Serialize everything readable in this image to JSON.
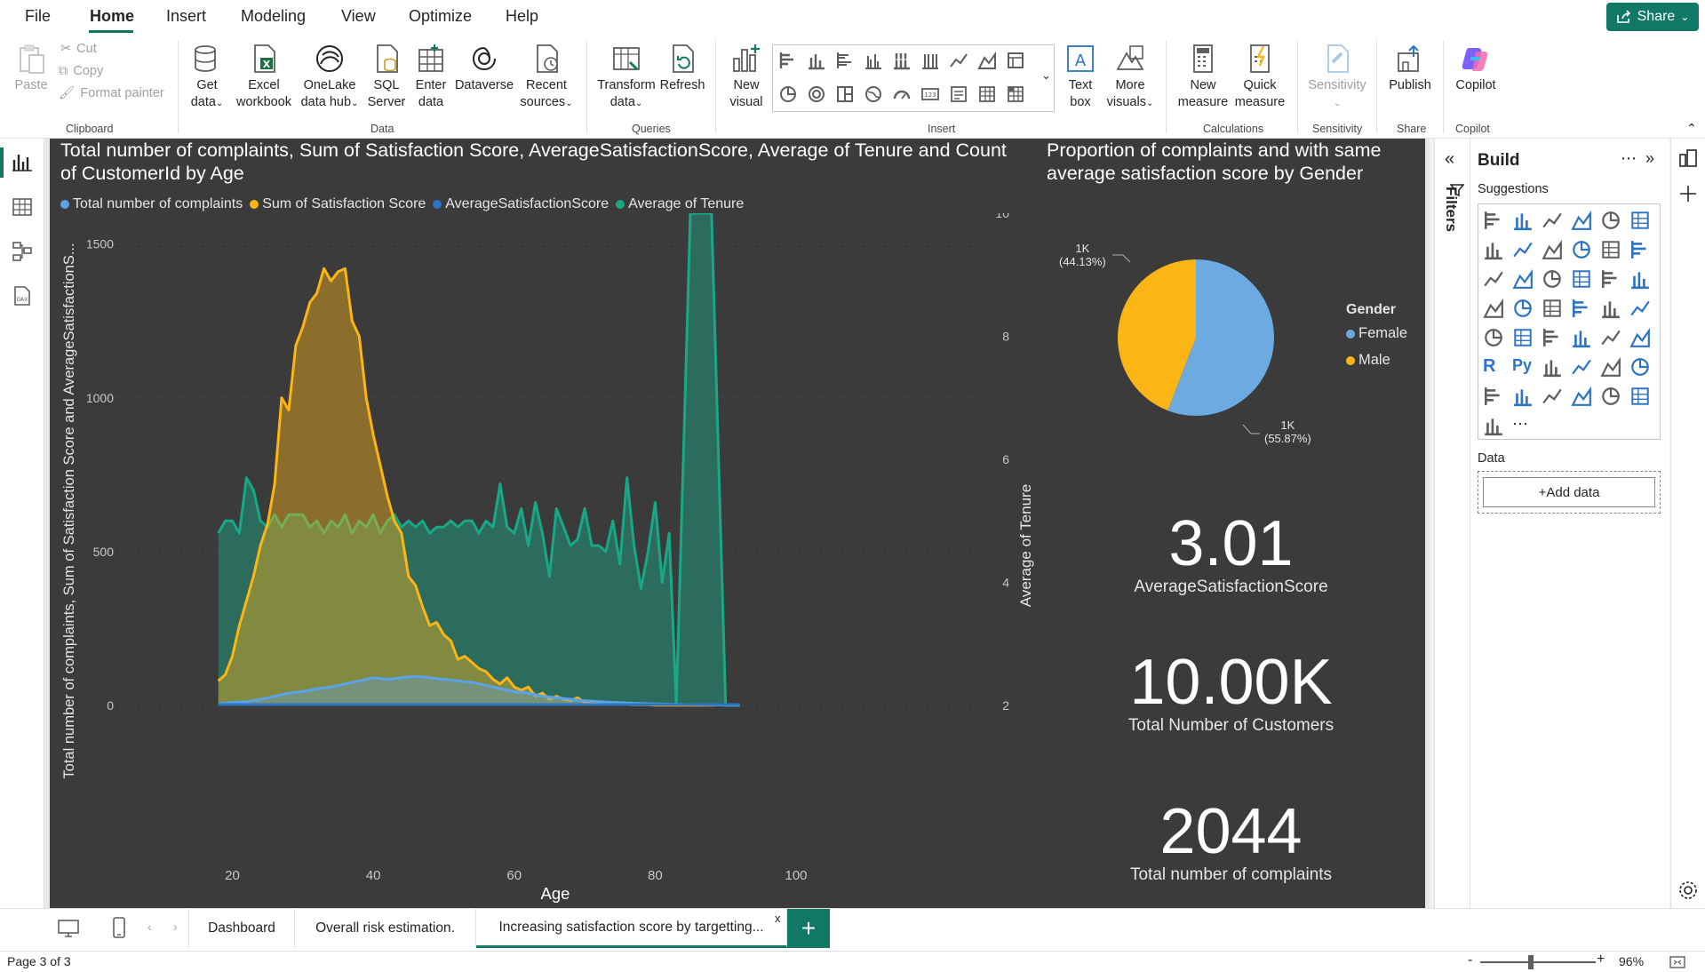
{
  "menu": {
    "items": [
      "File",
      "Home",
      "Insert",
      "Modeling",
      "View",
      "Optimize",
      "Help"
    ],
    "active": "Home",
    "share_label": "Share"
  },
  "ribbon": {
    "clipboard": {
      "paste": "Paste",
      "cut": "Cut",
      "copy": "Copy",
      "format_painter": "Format painter",
      "group": "Clipboard"
    },
    "data": {
      "get_data": [
        "Get",
        "data"
      ],
      "excel": [
        "Excel",
        "workbook"
      ],
      "onelake": [
        "OneLake",
        "data hub"
      ],
      "sql": [
        "SQL",
        "Server"
      ],
      "enter": [
        "Enter",
        "data"
      ],
      "dataverse": "Dataverse",
      "recent": [
        "Recent",
        "sources"
      ],
      "group": "Data"
    },
    "queries": {
      "transform": [
        "Transform",
        "data"
      ],
      "refresh": "Refresh",
      "group": "Queries"
    },
    "insert": {
      "new_visual": [
        "New",
        "visual"
      ],
      "text_box": [
        "Text",
        "box"
      ],
      "more_visuals": [
        "More",
        "visuals"
      ],
      "group": "Insert"
    },
    "calculations": {
      "new_measure": [
        "New",
        "measure"
      ],
      "quick_measure": [
        "Quick",
        "measure"
      ],
      "group": "Calculations"
    },
    "sensitivity": {
      "label": "Sensitivity",
      "group": "Sensitivity"
    },
    "share": {
      "publish": "Publish",
      "group": "Share"
    },
    "copilot": {
      "label": "Copilot",
      "group": "Copilot"
    }
  },
  "main_chart": {
    "title": "Total number of complaints, Sum of Satisfaction Score, AverageSatisfactionScore, Average of Tenure and Count of CustomerId by Age",
    "legend": [
      {
        "name": "Total number of complaints",
        "color": "#5ba3e8"
      },
      {
        "name": "Sum of Satisfaction Score",
        "color": "#fbb515"
      },
      {
        "name": "AverageSatisfactionScore",
        "color": "#2c73c2"
      },
      {
        "name": "Average of Tenure",
        "color": "#19a887"
      }
    ],
    "y_axis_label": "Total number of complaints, Sum of Satisfaction Score and AverageSatisfactionS...",
    "y2_axis_label": "Average of Tenure",
    "x_axis_label": "Age"
  },
  "chart_data": {
    "type": "area",
    "title": "Total number of complaints, Sum of Satisfaction Score, AverageSatisfactionScore, Average of Tenure and Count of CustomerId by Age",
    "xlabel": "Age",
    "ylabel": "Total number of complaints, Sum of Satisfaction Score and AverageSatisfactionS...",
    "y2label": "Average of Tenure",
    "xlim": [
      13,
      100
    ],
    "ylim": [
      0,
      1600
    ],
    "y2lim": [
      2,
      10
    ],
    "x_ticks": [
      20,
      40,
      60,
      80,
      100
    ],
    "y_ticks": [
      0,
      500,
      1000,
      1500
    ],
    "y2_ticks": [
      2,
      4,
      6,
      8,
      10
    ],
    "series": [
      {
        "name": "Average of Tenure",
        "axis": "y2",
        "color": "#19a887",
        "x": [
          18,
          19,
          20,
          21,
          22,
          23,
          24,
          25,
          26,
          27,
          28,
          29,
          30,
          31,
          32,
          33,
          34,
          35,
          36,
          37,
          38,
          39,
          40,
          41,
          42,
          43,
          44,
          45,
          46,
          47,
          48,
          49,
          50,
          51,
          52,
          53,
          54,
          55,
          56,
          57,
          58,
          59,
          60,
          61,
          62,
          63,
          64,
          65,
          66,
          67,
          68,
          69,
          70,
          71,
          72,
          73,
          74,
          75,
          76,
          77,
          78,
          79,
          80,
          81,
          82,
          83,
          85,
          88,
          90,
          92
        ],
        "values": [
          4.8,
          5.0,
          5.0,
          4.8,
          5.7,
          5.5,
          5.0,
          4.9,
          5.1,
          4.9,
          5.1,
          5.1,
          5.1,
          4.9,
          5.0,
          4.8,
          5.0,
          4.9,
          5.1,
          4.8,
          5.0,
          4.9,
          5.1,
          4.8,
          5.0,
          5.1,
          4.9,
          5.0,
          4.9,
          5.0,
          4.8,
          4.9,
          4.9,
          5.0,
          4.9,
          5.0,
          5.0,
          4.8,
          5.0,
          4.9,
          5.6,
          4.9,
          4.8,
          5.2,
          4.6,
          5.3,
          4.8,
          4.1,
          5.2,
          4.9,
          4.6,
          4.7,
          5.2,
          4.6,
          4.6,
          4.5,
          5.0,
          4.3,
          5.7,
          4.6,
          3.9,
          4.5,
          5.3,
          4.0,
          4.8,
          2.0,
          10.0,
          10.0,
          2.0,
          2.0
        ]
      },
      {
        "name": "Sum of Satisfaction Score",
        "axis": "y",
        "color": "#fbb515",
        "x": [
          18,
          19,
          20,
          21,
          22,
          23,
          24,
          25,
          26,
          27,
          28,
          29,
          30,
          31,
          32,
          33,
          34,
          35,
          36,
          37,
          38,
          39,
          40,
          41,
          42,
          43,
          44,
          45,
          46,
          47,
          48,
          49,
          50,
          51,
          52,
          53,
          54,
          55,
          56,
          57,
          58,
          59,
          60,
          61,
          62,
          63,
          64,
          65,
          66,
          67,
          68,
          69,
          70,
          71,
          72,
          73,
          74,
          75,
          76,
          77,
          78,
          79,
          80,
          81,
          82,
          83,
          85,
          88,
          90,
          92
        ],
        "values": [
          80,
          100,
          160,
          260,
          340,
          420,
          520,
          590,
          720,
          1000,
          960,
          1170,
          1230,
          1310,
          1340,
          1420,
          1380,
          1410,
          1420,
          1250,
          1200,
          1000,
          880,
          780,
          680,
          600,
          560,
          420,
          390,
          320,
          260,
          270,
          230,
          210,
          150,
          160,
          140,
          120,
          110,
          85,
          70,
          90,
          60,
          50,
          60,
          30,
          40,
          20,
          30,
          20,
          15,
          25,
          10,
          12,
          8,
          10,
          5,
          5,
          3,
          2,
          2,
          2,
          1,
          1,
          1,
          1,
          1,
          1,
          2,
          2
        ]
      },
      {
        "name": "Total number of complaints",
        "axis": "y",
        "color": "#5ba3e8",
        "x": [
          18,
          20,
          22,
          24,
          26,
          28,
          30,
          32,
          34,
          36,
          38,
          40,
          42,
          44,
          46,
          48,
          50,
          52,
          54,
          56,
          58,
          60,
          62,
          64,
          66,
          68,
          70,
          72,
          74,
          76,
          78,
          80,
          82,
          85,
          88,
          90,
          92
        ],
        "values": [
          5,
          10,
          12,
          20,
          30,
          40,
          45,
          55,
          60,
          70,
          80,
          90,
          85,
          90,
          95,
          90,
          85,
          80,
          75,
          65,
          55,
          45,
          40,
          30,
          25,
          20,
          15,
          12,
          10,
          8,
          6,
          5,
          4,
          3,
          2,
          1,
          1
        ]
      },
      {
        "name": "AverageSatisfactionScore",
        "axis": "y",
        "color": "#2c73c2",
        "x": [
          18,
          92
        ],
        "values": [
          3,
          3
        ]
      }
    ],
    "legend_position": "top-left"
  },
  "pie": {
    "title": "Proportion of complaints and with same average satisfaction score by Gender",
    "legend_title": "Gender",
    "slices": [
      {
        "name": "Female",
        "value": 55.87,
        "label": "1K",
        "pct": "(55.87%)",
        "color": "#6caae0"
      },
      {
        "name": "Male",
        "value": 44.13,
        "label": "1K",
        "pct": "(44.13%)",
        "color": "#fbb515"
      }
    ]
  },
  "cards": [
    {
      "value": "3.01",
      "label": "AverageSatisfactionScore"
    },
    {
      "value": "10.00K",
      "label": "Total Number of Customers"
    },
    {
      "value": "2044",
      "label": "Total number of complaints"
    }
  ],
  "filters_label": "Filters",
  "build_pane": {
    "title": "Build",
    "suggestions_label": "Suggestions",
    "data_label": "Data",
    "add_data": "+Add data"
  },
  "pages": {
    "tabs": [
      "Dashboard",
      "Overall risk estimation.",
      "Increasing satisfaction score by targetting..."
    ],
    "active_index": 2,
    "close": "x",
    "add": "+"
  },
  "status": {
    "page": "Page 3 of 3",
    "zoom": "96%",
    "zoom_fraction": 0.44
  }
}
